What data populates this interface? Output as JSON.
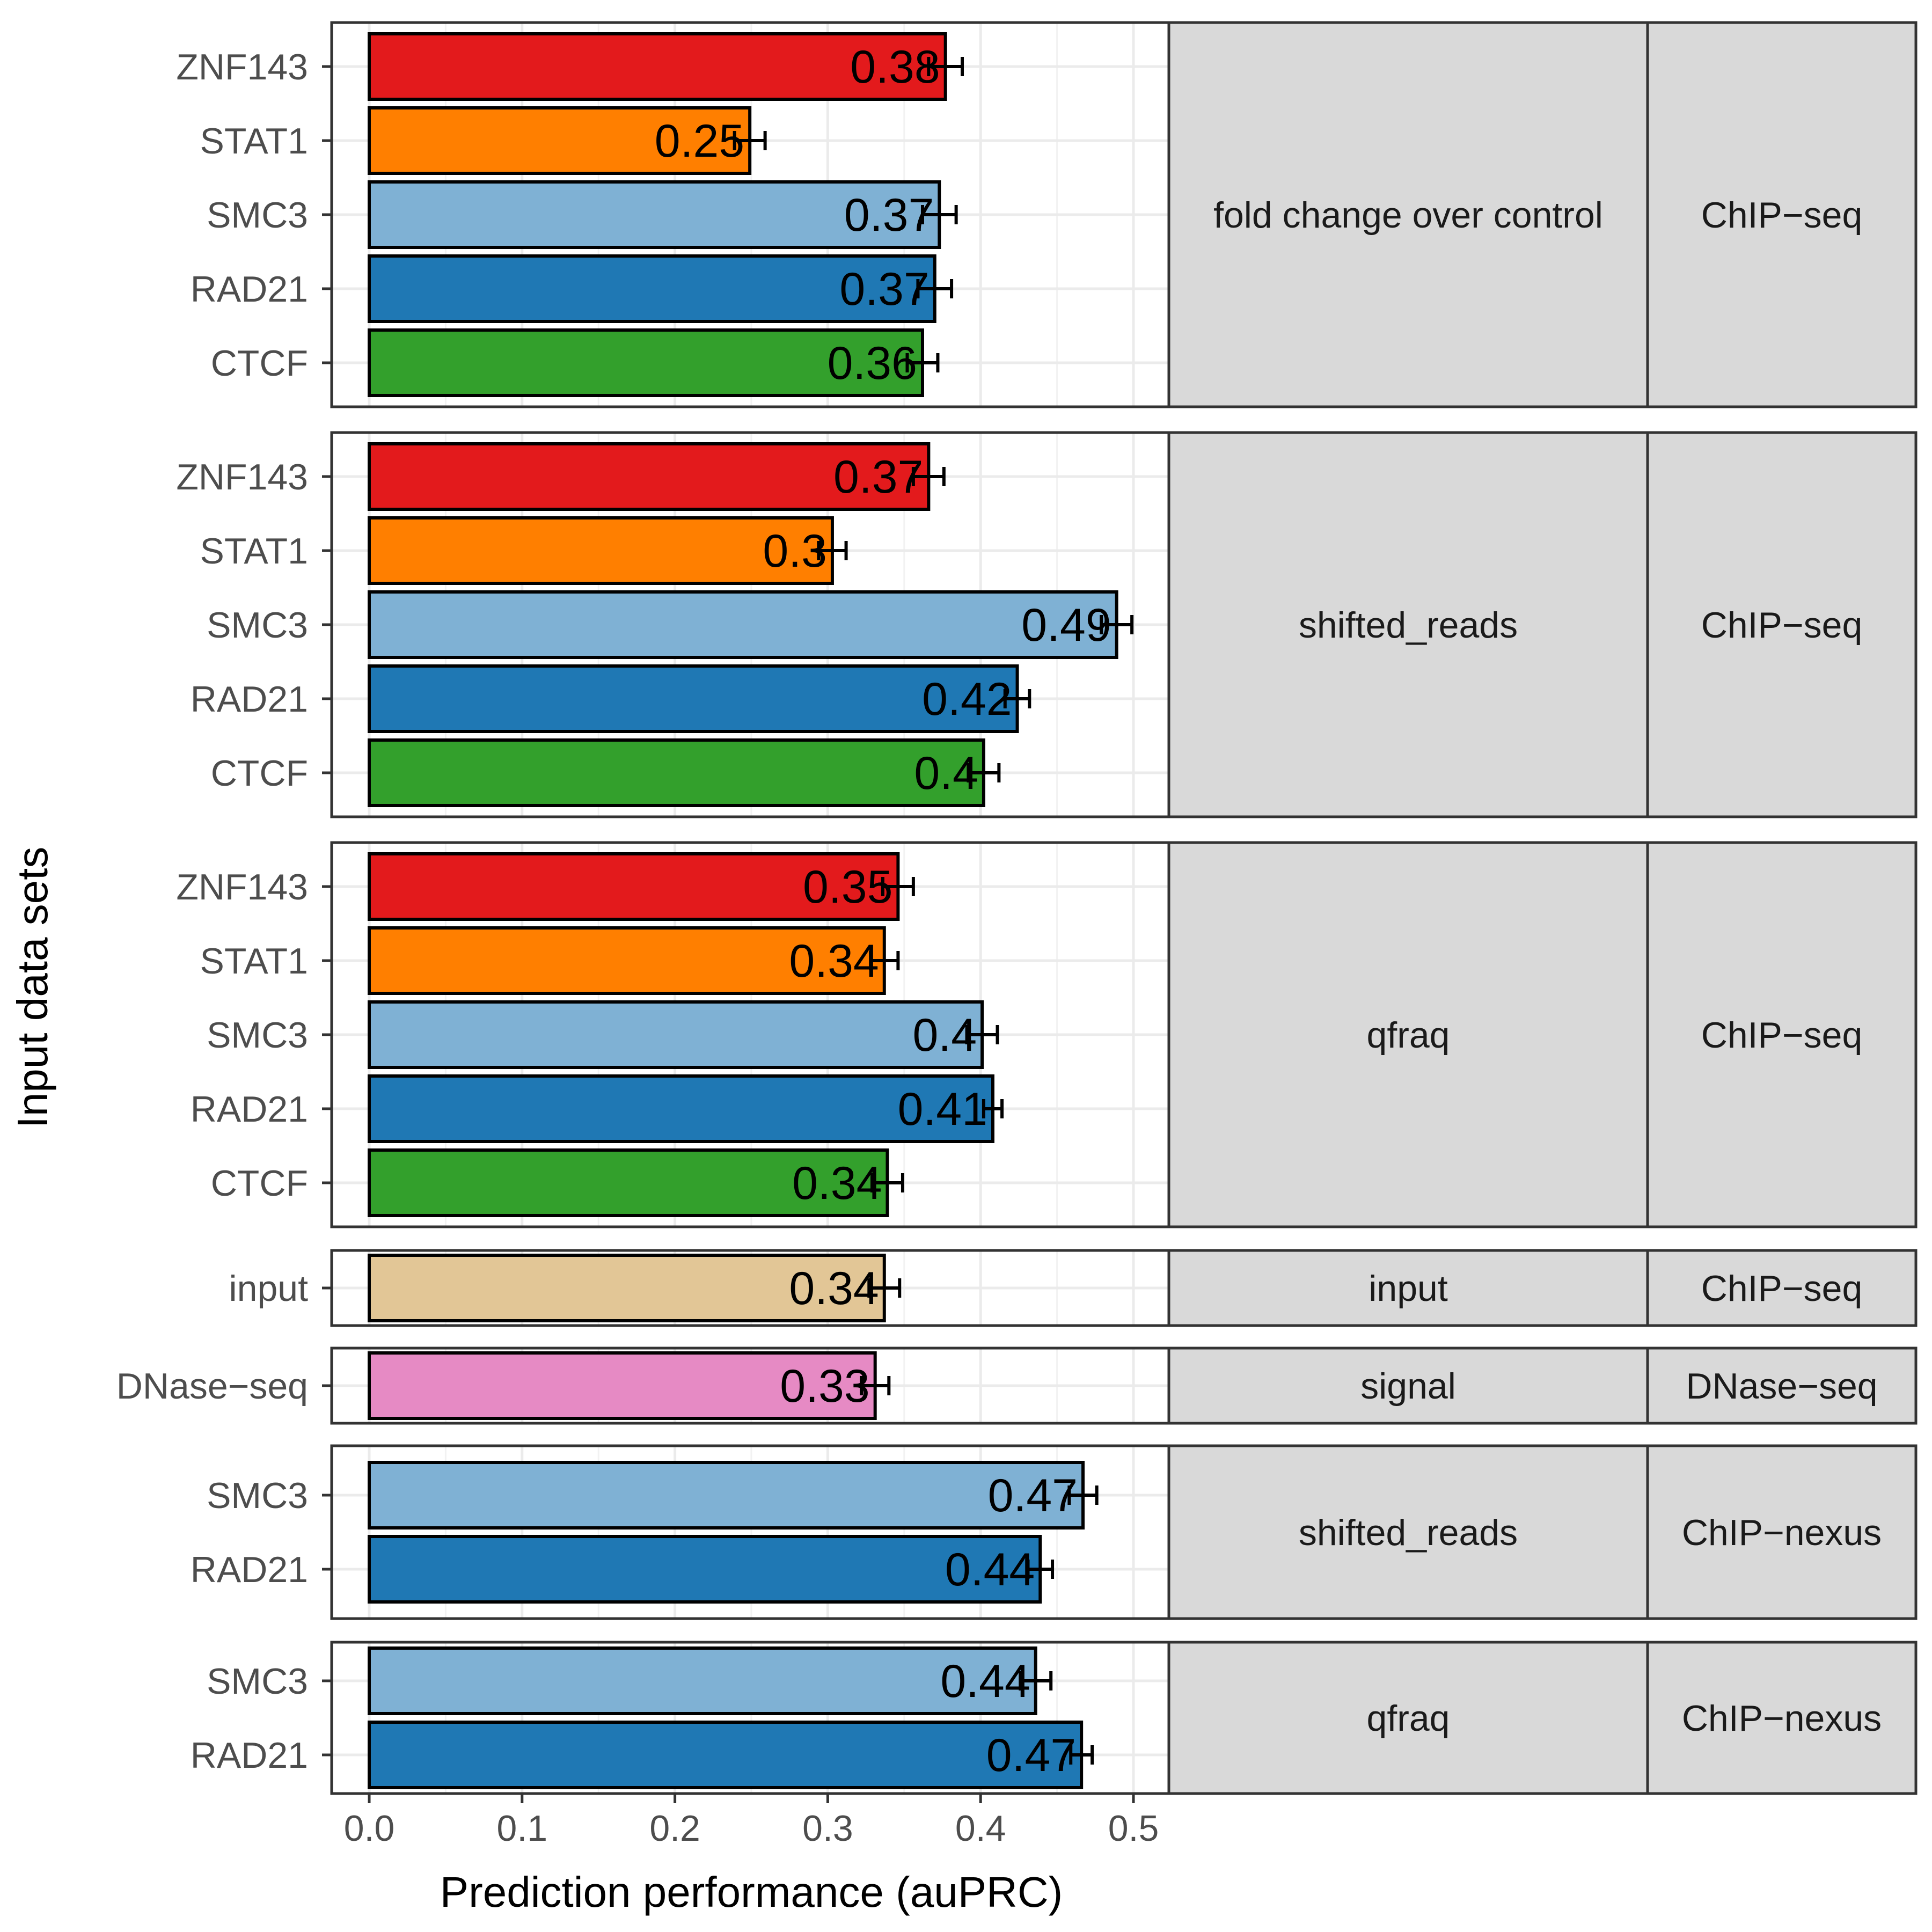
{
  "chart_data": {
    "type": "bar",
    "orientation": "horizontal",
    "xlabel": "Prediction performance (auPRC)",
    "ylabel": "Input data sets",
    "xlim": [
      -0.024,
      0.524
    ],
    "xticks": [
      0.0,
      0.1,
      0.2,
      0.3,
      0.4,
      0.5
    ],
    "xtick_labels": [
      "0.0",
      "0.1",
      "0.2",
      "0.3",
      "0.4",
      "0.5"
    ],
    "grid": true,
    "colors": {
      "ZNF143": "#e31a1c",
      "STAT1": "#ff7f00",
      "SMC3": "#7fb1d4",
      "RAD21": "#1f78b4",
      "CTCF": "#33a02c",
      "input": "#e2c696",
      "DNase-seq": "#e68ac4"
    },
    "panels": [
      {
        "strip1": "fold change over control",
        "strip2": "ChIP−seq",
        "bars": [
          {
            "label": "ZNF143",
            "value": 0.377,
            "error": 0.011,
            "text": "0.38"
          },
          {
            "label": "STAT1",
            "value": 0.249,
            "error": 0.01,
            "text": "0.25"
          },
          {
            "label": "SMC3",
            "value": 0.373,
            "error": 0.011,
            "text": "0.37"
          },
          {
            "label": "RAD21",
            "value": 0.37,
            "error": 0.011,
            "text": "0.37"
          },
          {
            "label": "CTCF",
            "value": 0.362,
            "error": 0.01,
            "text": "0.36"
          }
        ]
      },
      {
        "strip1": "shifted_reads",
        "strip2": "ChIP−seq",
        "bars": [
          {
            "label": "ZNF143",
            "value": 0.366,
            "error": 0.01,
            "text": "0.37"
          },
          {
            "label": "STAT1",
            "value": 0.303,
            "error": 0.009,
            "text": "0.3"
          },
          {
            "label": "SMC3",
            "value": 0.489,
            "error": 0.01,
            "text": "0.49"
          },
          {
            "label": "RAD21",
            "value": 0.424,
            "error": 0.008,
            "text": "0.42"
          },
          {
            "label": "CTCF",
            "value": 0.402,
            "error": 0.01,
            "text": "0.4"
          }
        ]
      },
      {
        "strip1": "qfraq",
        "strip2": "ChIP−seq",
        "bars": [
          {
            "label": "ZNF143",
            "value": 0.346,
            "error": 0.01,
            "text": "0.35"
          },
          {
            "label": "STAT1",
            "value": 0.337,
            "error": 0.009,
            "text": "0.34"
          },
          {
            "label": "SMC3",
            "value": 0.401,
            "error": 0.01,
            "text": "0.4"
          },
          {
            "label": "RAD21",
            "value": 0.408,
            "error": 0.006,
            "text": "0.41"
          },
          {
            "label": "CTCF",
            "value": 0.339,
            "error": 0.01,
            "text": "0.34"
          }
        ]
      },
      {
        "strip1": "input",
        "strip2": "ChIP−seq",
        "bars": [
          {
            "label": "input",
            "value": 0.337,
            "error": 0.01,
            "text": "0.34"
          }
        ]
      },
      {
        "strip1": "signal",
        "strip2": "DNase−seq",
        "bars": [
          {
            "label": "DNase−seq",
            "color_key": "DNase-seq",
            "value": 0.331,
            "error": 0.009,
            "text": "0.33"
          }
        ]
      },
      {
        "strip1": "shifted_reads",
        "strip2": "ChIP−nexus",
        "bars": [
          {
            "label": "SMC3",
            "value": 0.467,
            "error": 0.009,
            "text": "0.47"
          },
          {
            "label": "RAD21",
            "value": 0.439,
            "error": 0.008,
            "text": "0.44"
          }
        ]
      },
      {
        "strip1": "qfraq",
        "strip2": "ChIP−nexus",
        "bars": [
          {
            "label": "SMC3",
            "value": 0.436,
            "error": 0.01,
            "text": "0.44"
          },
          {
            "label": "RAD21",
            "value": 0.466,
            "error": 0.007,
            "text": "0.47"
          }
        ]
      }
    ]
  }
}
